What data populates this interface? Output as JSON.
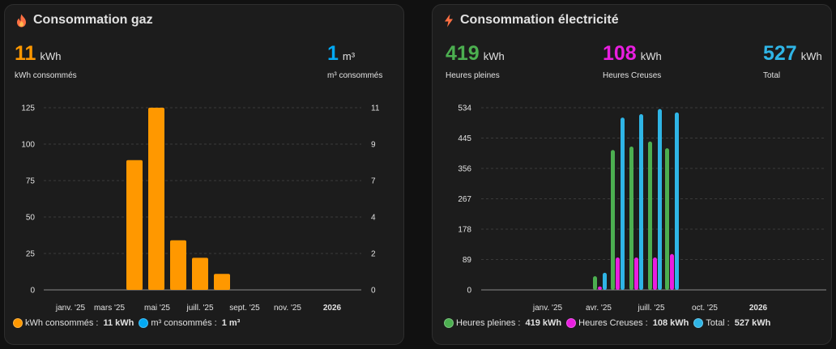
{
  "gas": {
    "title": "Consommation gaz",
    "icon": "fire-icon",
    "stats": [
      {
        "value": "11",
        "unit": "kWh",
        "label": "kWh consommés",
        "color": "#ff9800"
      },
      {
        "value": "1",
        "unit": "m³",
        "label": "m³ consommés",
        "color": "#03a9f4"
      }
    ],
    "chart_data": {
      "type": "bar",
      "x_ticks": [
        "janv. '25",
        "mars '25",
        "mai '25",
        "juill. '25",
        "sept. '25",
        "nov. '25",
        "2026"
      ],
      "y_left_ticks": [
        "0",
        "25",
        "50",
        "75",
        "100",
        "125"
      ],
      "y_right_ticks": [
        "0",
        "2",
        "4",
        "7",
        "9",
        "11"
      ],
      "ylim_left": [
        0,
        125
      ],
      "ylim_right": [
        0,
        11
      ],
      "series": [
        {
          "name": "kWh consommés",
          "color": "#ff9800",
          "points": [
            [
              "avr. '25",
              89
            ],
            [
              "mai '25",
              125
            ],
            [
              "juin '25",
              34
            ],
            [
              "juill. '25",
              22
            ],
            [
              "août '25",
              11
            ]
          ]
        },
        {
          "name": "m³ consommés",
          "color": "#03a9f4",
          "points": []
        }
      ],
      "grid": true
    },
    "legend": [
      {
        "name": "kWh consommés",
        "value": "11 kWh",
        "color": "#ff9800"
      },
      {
        "name": "m³ consommés",
        "value": "1 m³",
        "color": "#03a9f4"
      }
    ]
  },
  "elec": {
    "title": "Consommation électricité",
    "icon": "lightning-icon",
    "stats": [
      {
        "value": "419",
        "unit": "kWh",
        "label": "Heures pleines",
        "color": "#4caf50"
      },
      {
        "value": "108",
        "unit": "kWh",
        "label": "Heures Creuses",
        "color": "#e91ee0"
      },
      {
        "value": "527",
        "unit": "kWh",
        "label": "Total",
        "color": "#2fb5e6"
      }
    ],
    "chart_data": {
      "type": "bar",
      "x_ticks": [
        "janv. '25",
        "avr. '25",
        "juill. '25",
        "oct. '25",
        "2026"
      ],
      "y_ticks": [
        "0",
        "89",
        "178",
        "267",
        "356",
        "445",
        "534"
      ],
      "ylim": [
        0,
        534
      ],
      "groups": [
        {
          "hp": 40,
          "hc": 10,
          "total": 50
        },
        {
          "hp": 410,
          "hc": 95,
          "total": 505
        },
        {
          "hp": 420,
          "hc": 95,
          "total": 515
        },
        {
          "hp": 435,
          "hc": 95,
          "total": 530
        },
        {
          "hp": 415,
          "hc": 105,
          "total": 520
        }
      ],
      "series": [
        {
          "name": "Heures pleines",
          "color": "#4caf50"
        },
        {
          "name": "Heures Creuses",
          "color": "#e91ee0"
        },
        {
          "name": "Total",
          "color": "#2fb5e6"
        }
      ],
      "grid": true
    },
    "legend": [
      {
        "name": "Heures pleines",
        "value": "419 kWh",
        "color": "#4caf50"
      },
      {
        "name": "Heures Creuses",
        "value": "108 kWh",
        "color": "#e91ee0"
      },
      {
        "name": "Total",
        "value": "527 kWh",
        "color": "#2fb5e6"
      }
    ]
  }
}
